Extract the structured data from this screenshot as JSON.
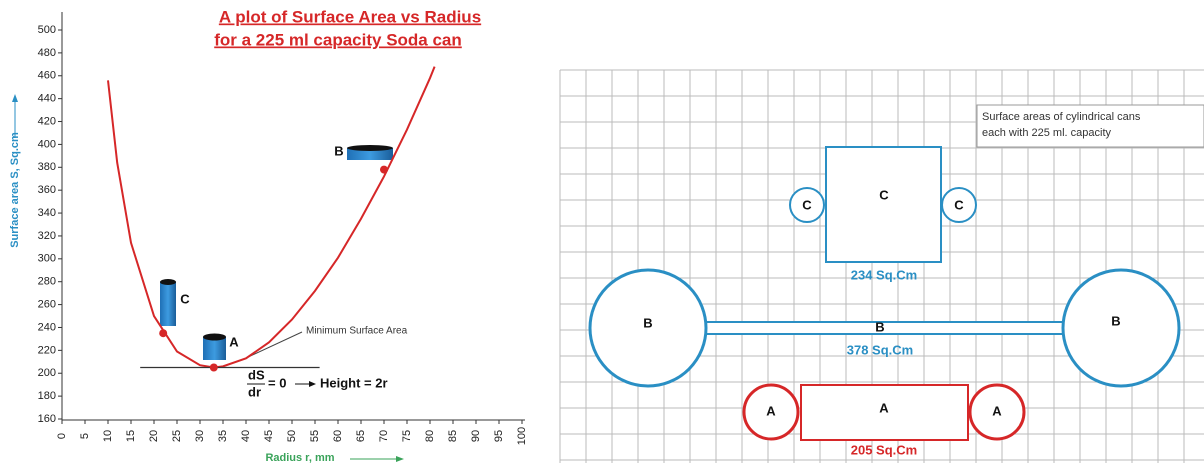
{
  "chart_data": {
    "type": "line",
    "title": [
      "A plot of Surface Area  vs  Radius",
      "for a 225 ml capacity Soda can"
    ],
    "x_label": "Radius r, mm",
    "y_label": "Surface area S, Sq.cm",
    "x": [
      10,
      12,
      15,
      20,
      25,
      30,
      33,
      35,
      40,
      45,
      50,
      55,
      60,
      65,
      70,
      75,
      80,
      81
    ],
    "values": [
      456,
      384,
      314,
      250,
      219,
      207,
      205,
      206,
      213,
      227,
      247,
      272,
      301,
      335,
      372,
      413,
      458,
      468
    ],
    "color": "#d62728",
    "points": [
      {
        "label": "C",
        "x": 22,
        "y": 235
      },
      {
        "label": "A",
        "x": 33,
        "y": 205
      },
      {
        "label": "B",
        "x": 70,
        "y": 378
      }
    ],
    "annotations": [
      "Minimum Surface Area",
      "dS",
      "dr",
      "= 0",
      "Height = 2r"
    ],
    "xlim": [
      0,
      100
    ],
    "xticks": [
      0,
      5,
      10,
      15,
      20,
      25,
      30,
      35,
      40,
      45,
      50,
      55,
      60,
      65,
      70,
      75,
      80,
      85,
      90,
      95,
      100
    ],
    "ylim": [
      160,
      500
    ],
    "yticks": [
      160,
      180,
      200,
      220,
      240,
      260,
      280,
      300,
      320,
      340,
      360,
      380,
      400,
      420,
      440,
      460,
      480,
      500
    ],
    "grid": false
  },
  "diagram": {
    "note": [
      "Surface areas of cylindrical cans",
      "each with 225 ml. capacity"
    ],
    "cans": [
      {
        "label": "C",
        "area": "234 Sq.Cm"
      },
      {
        "label": "B",
        "area": "378 Sq.Cm"
      },
      {
        "label": "A",
        "area": "205 Sq.Cm"
      }
    ]
  }
}
